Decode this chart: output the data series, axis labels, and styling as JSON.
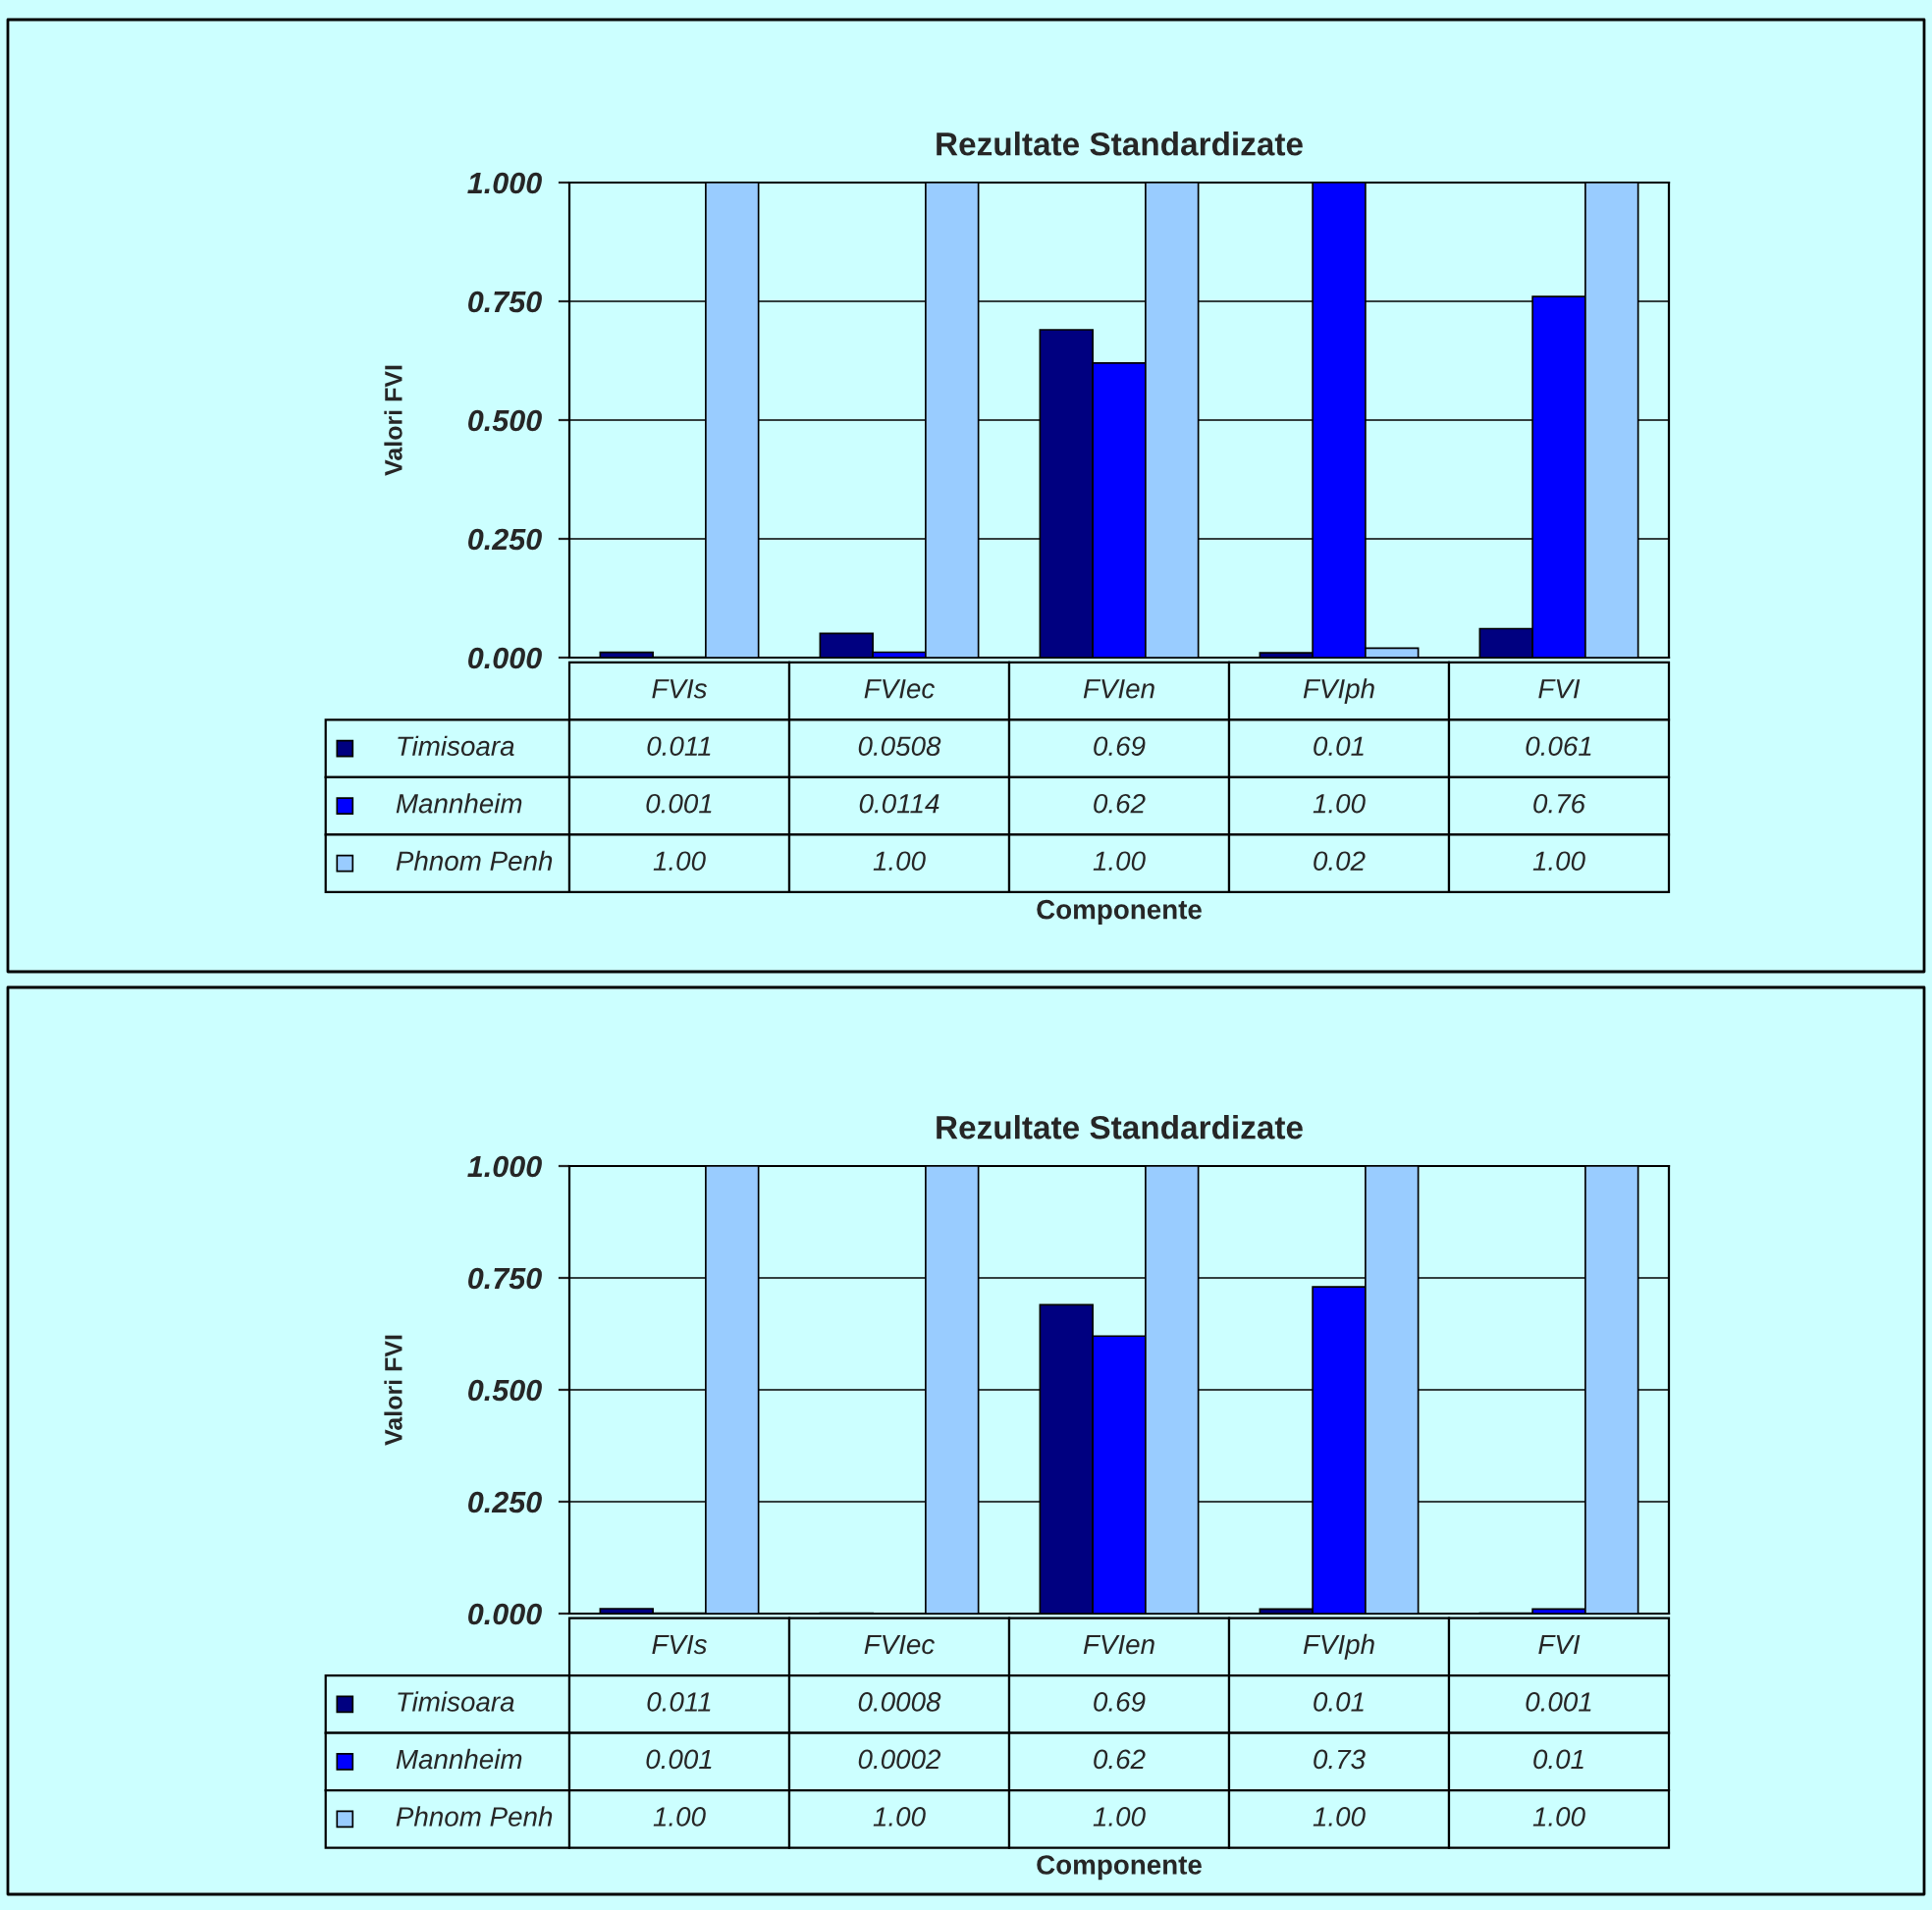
{
  "chart_data": [
    {
      "type": "bar",
      "title": "Rezultate Standardizate",
      "ylabel": "Valori FVI",
      "xlabel": "Componente",
      "categories": [
        "FVIs",
        "FVIec",
        "FVIen",
        "FVIph",
        "FVI"
      ],
      "series": [
        {
          "name": "Timisoara",
          "color": "#000080",
          "values": [
            0.011,
            0.0508,
            0.69,
            0.01,
            0.061
          ],
          "value_labels": [
            "0.011",
            "0.0508",
            "0.69",
            "0.01",
            "0.061"
          ]
        },
        {
          "name": "Mannheim",
          "color": "#0000ff",
          "values": [
            0.001,
            0.0114,
            0.62,
            1.0,
            0.76
          ],
          "value_labels": [
            "0.001",
            "0.0114",
            "0.62",
            "1.00",
            "0.76"
          ]
        },
        {
          "name": "Phnom Penh",
          "color": "#99ccff",
          "values": [
            1.0,
            1.0,
            1.0,
            0.02,
            1.0
          ],
          "value_labels": [
            "1.00",
            "1.00",
            "1.00",
            "0.02",
            "1.00"
          ]
        }
      ],
      "ylim": [
        0,
        1
      ],
      "yticks": [
        {
          "value": 0,
          "label": "0.000"
        },
        {
          "value": 0.25,
          "label": "0.250"
        },
        {
          "value": 0.5,
          "label": "0.500"
        },
        {
          "value": 0.75,
          "label": "0.750"
        },
        {
          "value": 1,
          "label": "1.000"
        }
      ],
      "grid": "y",
      "legend": "bottom left",
      "tick_labels": "y"
    },
    {
      "type": "bar",
      "title": "Rezultate Standardizate",
      "ylabel": "Valori FVI",
      "xlabel": "Componente",
      "categories": [
        "FVIs",
        "FVIec",
        "FVIen",
        "FVIph",
        "FVI"
      ],
      "series": [
        {
          "name": "Timisoara",
          "color": "#000080",
          "values": [
            0.011,
            0.0008,
            0.69,
            0.01,
            0.001
          ],
          "value_labels": [
            "0.011",
            "0.0008",
            "0.69",
            "0.01",
            "0.001"
          ]
        },
        {
          "name": "Mannheim",
          "color": "#0000ff",
          "values": [
            0.001,
            0.0002,
            0.62,
            0.73,
            0.01
          ],
          "value_labels": [
            "0.001",
            "0.0002",
            "0.62",
            "0.73",
            "0.01"
          ]
        },
        {
          "name": "Phnom Penh",
          "color": "#99ccff",
          "values": [
            1.0,
            1.0,
            1.0,
            1.0,
            1.0
          ],
          "value_labels": [
            "1.00",
            "1.00",
            "1.00",
            "1.00",
            "1.00"
          ]
        }
      ],
      "ylim": [
        0,
        1
      ],
      "yticks": [
        {
          "value": 0,
          "label": "0.000"
        },
        {
          "value": 0.25,
          "label": "0.250"
        },
        {
          "value": 0.5,
          "label": "0.500"
        },
        {
          "value": 0.75,
          "label": "0.750"
        },
        {
          "value": 1,
          "label": "1.000"
        }
      ],
      "grid": "y",
      "legend": "bottom left",
      "tick_labels": "y"
    }
  ]
}
